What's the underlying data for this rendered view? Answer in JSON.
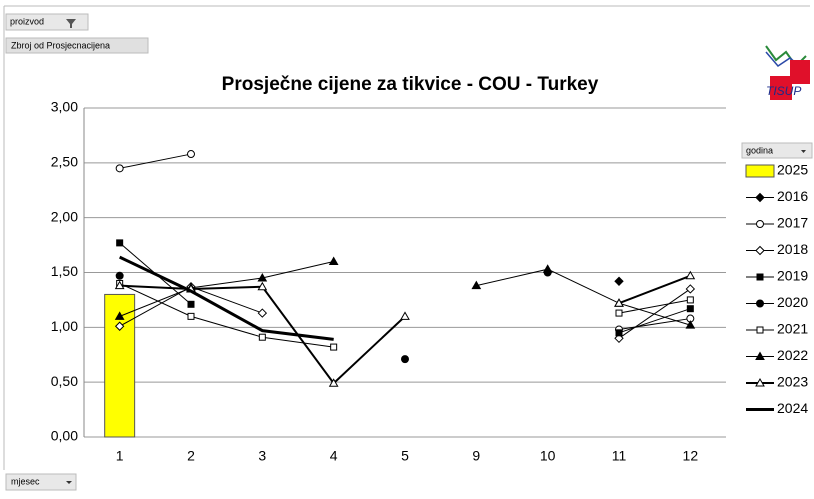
{
  "pivot": {
    "filter_button": "proizvod",
    "value_button": "Zbroj od Prosjecnacijena",
    "axis_button": "mjesec",
    "legend_button": "godina"
  },
  "chart_data": {
    "type": "line",
    "title": "Prosječne cijene za tikvice - COU - Turkey",
    "categories": [
      "1",
      "2",
      "3",
      "4",
      "5",
      "9",
      "10",
      "11",
      "12"
    ],
    "ylim": [
      0,
      3
    ],
    "yticks": [
      {
        "value": 0,
        "label": "0,00"
      },
      {
        "value": 0.5,
        "label": "0,50"
      },
      {
        "value": 1,
        "label": "1,00"
      },
      {
        "value": 1.5,
        "label": "1,50"
      },
      {
        "value": 2,
        "label": "2,00"
      },
      {
        "value": 2.5,
        "label": "2,50"
      },
      {
        "value": 3,
        "label": "3,00"
      }
    ],
    "grid": true,
    "legend": "right",
    "series": [
      {
        "name": "2025",
        "kind": "bar",
        "color": "#ffff00",
        "values": [
          1.3,
          null,
          null,
          null,
          null,
          null,
          null,
          null,
          null
        ]
      },
      {
        "name": "2016",
        "marker": "diamond-filled",
        "color": "#000000",
        "values": [
          null,
          null,
          null,
          null,
          null,
          null,
          null,
          1.42,
          null
        ]
      },
      {
        "name": "2017",
        "marker": "circle-open",
        "color": "#000000",
        "values": [
          2.45,
          2.58,
          null,
          null,
          null,
          null,
          null,
          0.98,
          1.08
        ]
      },
      {
        "name": "2018",
        "marker": "diamond-open",
        "color": "#000000",
        "values": [
          1.01,
          1.37,
          1.13,
          null,
          null,
          null,
          null,
          0.9,
          1.35
        ]
      },
      {
        "name": "2019",
        "marker": "square-filled",
        "color": "#000000",
        "values": [
          1.77,
          1.21,
          null,
          null,
          null,
          null,
          null,
          0.95,
          1.17
        ]
      },
      {
        "name": "2020",
        "marker": "circle-filled",
        "color": "#000000",
        "values": [
          1.47,
          null,
          null,
          null,
          0.71,
          null,
          1.5,
          null,
          null
        ]
      },
      {
        "name": "2021",
        "marker": "square-open",
        "color": "#000000",
        "values": [
          1.4,
          1.1,
          0.91,
          0.82,
          null,
          null,
          null,
          1.13,
          1.25
        ]
      },
      {
        "name": "2022",
        "marker": "triangle-filled",
        "color": "#000000",
        "values": [
          1.1,
          1.36,
          1.45,
          1.6,
          null,
          1.38,
          1.53,
          1.22,
          1.02
        ]
      },
      {
        "name": "2023",
        "marker": "triangle-open",
        "color": "#000000",
        "width": 2,
        "values": [
          1.38,
          1.35,
          1.37,
          0.49,
          1.1,
          null,
          null,
          1.22,
          1.47
        ]
      },
      {
        "name": "2024",
        "marker": "none",
        "color": "#000000",
        "width": 3,
        "values": [
          1.64,
          1.33,
          0.97,
          0.89,
          null,
          null,
          null,
          null,
          null
        ]
      }
    ]
  }
}
